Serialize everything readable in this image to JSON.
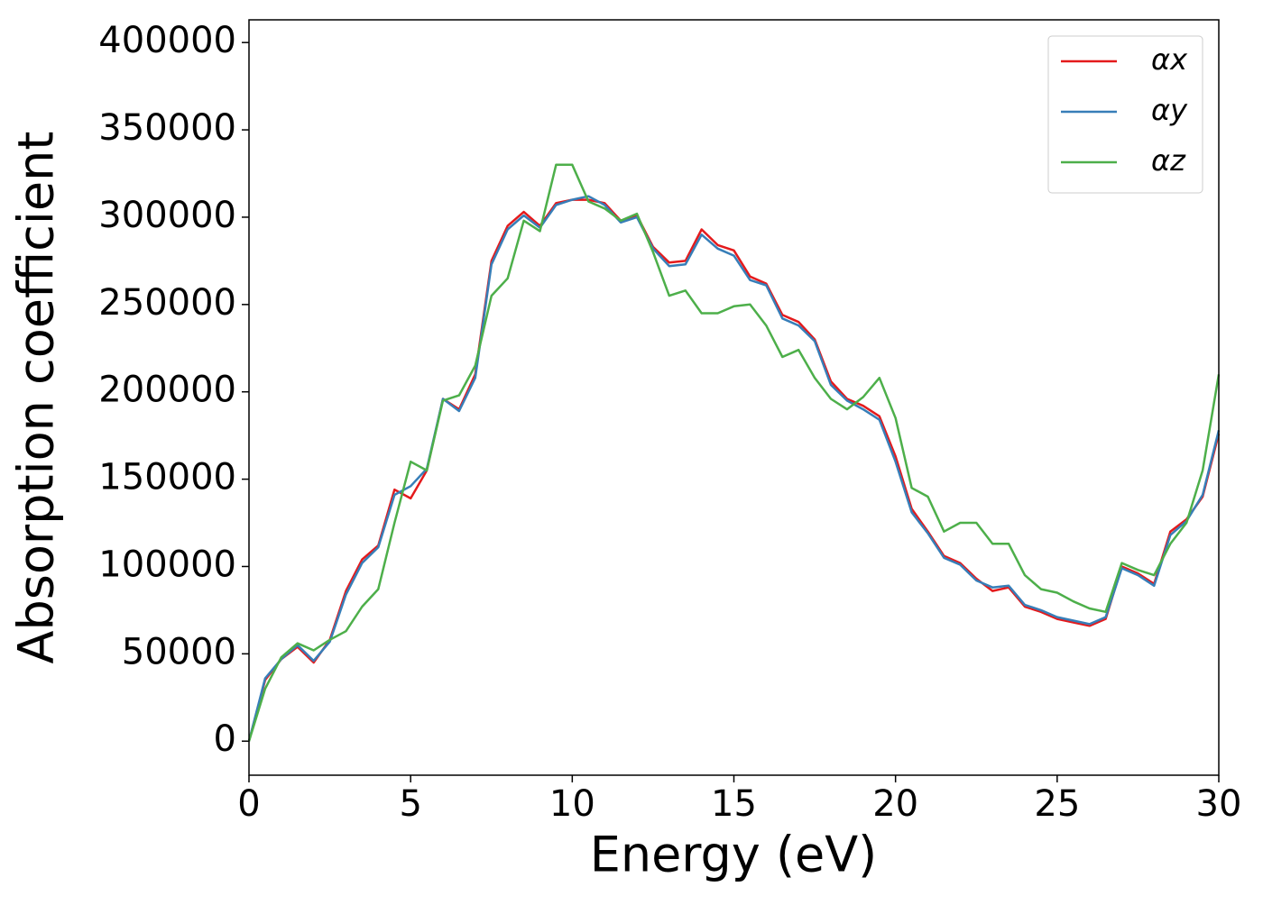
{
  "chart_data": {
    "type": "line",
    "xlabel": "Energy (eV)",
    "ylabel": "Absorption coefficient",
    "x": [
      0,
      0.5,
      1,
      1.5,
      2,
      2.5,
      3,
      3.5,
      4,
      4.5,
      5,
      5.5,
      6,
      6.5,
      7,
      7.5,
      8,
      8.5,
      9,
      9.5,
      10,
      10.5,
      11,
      11.5,
      12,
      12.5,
      13,
      13.5,
      14,
      14.5,
      15,
      15.5,
      16,
      16.5,
      17,
      17.5,
      18,
      18.5,
      19,
      19.5,
      20,
      20.5,
      21,
      21.5,
      22,
      22.5,
      23,
      23.5,
      24,
      24.5,
      25,
      25.5,
      26,
      26.5,
      27,
      27.5,
      28,
      28.5,
      29,
      29.5,
      30
    ],
    "series": [
      {
        "name": "αx",
        "color": "#e41a1c",
        "values": [
          0,
          35000,
          47000,
          54000,
          45000,
          58000,
          86000,
          104000,
          112000,
          144000,
          139000,
          155000,
          196000,
          190000,
          210000,
          275000,
          295000,
          303000,
          295000,
          308000,
          310000,
          310000,
          308000,
          298000,
          301000,
          283000,
          274000,
          275000,
          293000,
          284000,
          281000,
          266000,
          262000,
          244000,
          240000,
          230000,
          206000,
          196000,
          192000,
          186000,
          163000,
          133000,
          120000,
          106000,
          102000,
          93000,
          86000,
          88000,
          77000,
          74000,
          70000,
          68000,
          66000,
          70000,
          100000,
          96000,
          90000,
          120000,
          127000,
          140000,
          176000
        ]
      },
      {
        "name": "αy",
        "color": "#377eb8",
        "values": [
          0,
          36000,
          47000,
          55000,
          46000,
          57000,
          84000,
          102000,
          111000,
          141000,
          146000,
          156000,
          196000,
          189000,
          208000,
          273000,
          293000,
          301000,
          294000,
          307000,
          310000,
          312000,
          307000,
          297000,
          300000,
          282000,
          272000,
          273000,
          290000,
          282000,
          278000,
          264000,
          261000,
          242000,
          238000,
          229000,
          204000,
          195000,
          190000,
          184000,
          160000,
          131000,
          119000,
          105000,
          101000,
          92000,
          88000,
          89000,
          78000,
          75000,
          71000,
          69000,
          67000,
          71000,
          99000,
          95000,
          89000,
          118000,
          126000,
          141000,
          178000
        ]
      },
      {
        "name": "αz",
        "color": "#4daf4a",
        "values": [
          0,
          30000,
          48000,
          56000,
          52000,
          58000,
          63000,
          77000,
          87000,
          125000,
          160000,
          155000,
          195000,
          198000,
          215000,
          255000,
          265000,
          298000,
          292000,
          330000,
          330000,
          309000,
          305000,
          298000,
          302000,
          280000,
          255000,
          258000,
          245000,
          245000,
          249000,
          250000,
          238000,
          220000,
          224000,
          208000,
          196000,
          190000,
          197000,
          208000,
          185000,
          145000,
          140000,
          120000,
          125000,
          125000,
          113000,
          113000,
          95000,
          87000,
          85000,
          80000,
          76000,
          74000,
          102000,
          98000,
          95000,
          113000,
          125000,
          155000,
          210000
        ]
      }
    ],
    "xlim": [
      0,
      30
    ],
    "xticks": [
      0,
      5,
      10,
      15,
      20,
      25,
      30
    ],
    "ylim": [
      -19500,
      413000
    ],
    "yticks": [
      0,
      50000,
      100000,
      150000,
      200000,
      250000,
      300000,
      350000,
      400000
    ],
    "legend": "upper right"
  }
}
